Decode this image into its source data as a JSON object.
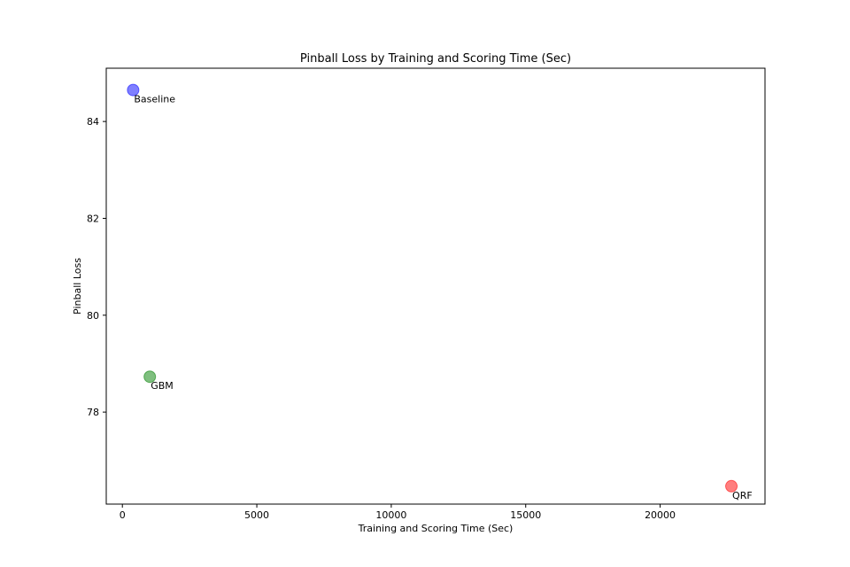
{
  "chart_data": {
    "type": "scatter",
    "title": "Pinball Loss by Training and Scoring Time (Sec)",
    "xlabel": "Training and Scoring Time (Sec)",
    "ylabel": "Pinball Loss",
    "xlim": [
      -600,
      23900
    ],
    "ylim": [
      76.1,
      85.1
    ],
    "xticks": [
      0,
      5000,
      10000,
      15000,
      20000
    ],
    "yticks": [
      78,
      80,
      82,
      84
    ],
    "grid": false,
    "points": [
      {
        "label": "Baseline",
        "x": 400,
        "y": 84.65,
        "color": "#0000ff"
      },
      {
        "label": "GBM",
        "x": 1020,
        "y": 78.73,
        "color": "#008000"
      },
      {
        "label": "QRF",
        "x": 22650,
        "y": 76.47,
        "color": "#ff0000"
      }
    ]
  }
}
